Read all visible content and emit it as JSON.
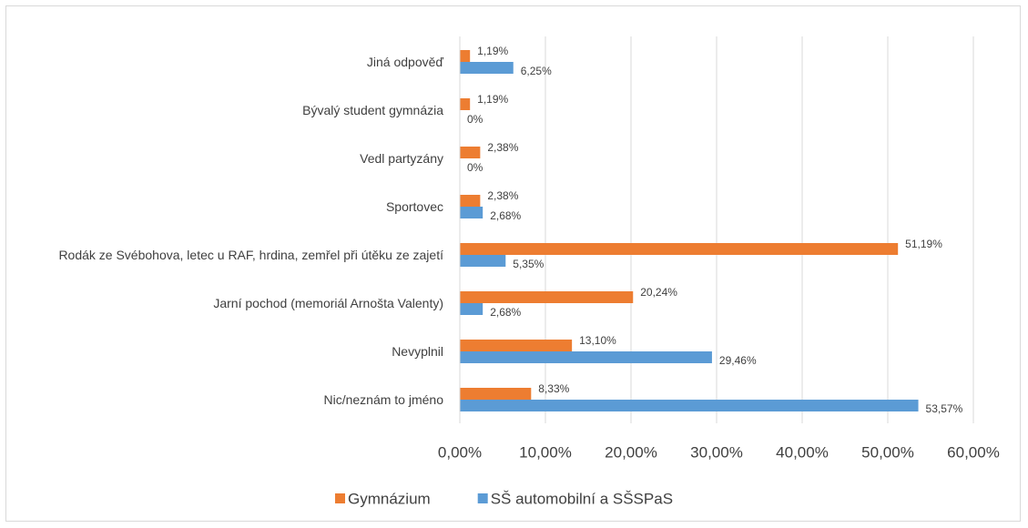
{
  "chart_data": {
    "type": "bar",
    "orientation": "horizontal",
    "categories": [
      "Jiná odpověď",
      "Bývalý student gymnázia",
      "Vedl partyzány",
      "Sportovec",
      "Rodák ze Svébohova, letec u RAF, hrdina, zemřel při útěku ze zajetí",
      "Jarní pochod (memoriál Arnošta Valenty)",
      "Nevyplnil",
      "Nic/neznám to jméno"
    ],
    "series": [
      {
        "name": "Gymnázium",
        "color": "#ed7d31",
        "values": [
          1.19,
          1.19,
          2.38,
          2.38,
          51.19,
          20.24,
          13.1,
          8.33
        ],
        "value_labels": [
          "1,19%",
          "1,19%",
          "2,38%",
          "2,38%",
          "51,19%",
          "20,24%",
          "13,10%",
          "8,33%"
        ]
      },
      {
        "name": "SŠ automobilní a SŠSPaS",
        "color": "#5b9bd5",
        "values": [
          6.25,
          0,
          0,
          2.68,
          5.35,
          2.68,
          29.46,
          53.57
        ],
        "value_labels": [
          "6,25%",
          "0%",
          "0%",
          "2,68%",
          "5,35%",
          "2,68%",
          "29,46%",
          "53,57%"
        ]
      }
    ],
    "xlim": [
      0,
      60
    ],
    "xticks": [
      {
        "value": 0,
        "label": "0,00%"
      },
      {
        "value": 10,
        "label": "10,00%"
      },
      {
        "value": 20,
        "label": "20,00%"
      },
      {
        "value": 30,
        "label": "30,00%"
      },
      {
        "value": 40,
        "label": "40,00%"
      },
      {
        "value": 50,
        "label": "50,00%"
      },
      {
        "value": 60,
        "label": "60,00%"
      }
    ],
    "grid": true,
    "legend": "bottom"
  }
}
